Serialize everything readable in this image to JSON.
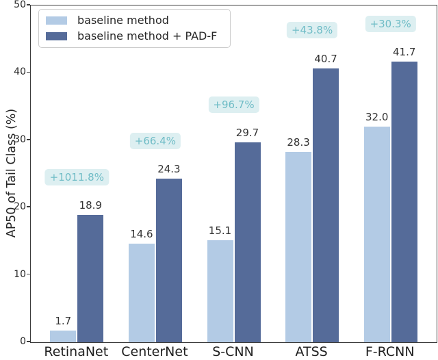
{
  "chart_data": {
    "type": "bar",
    "title": "",
    "xlabel": "",
    "ylabel": "AP50 of Tail Class (%)",
    "ylim": [
      0,
      50
    ],
    "yticks": [
      0,
      10,
      20,
      30,
      40,
      50
    ],
    "grid": false,
    "legend_position": "upper left",
    "categories": [
      "RetinaNet",
      "CenterNet",
      "S-CNN",
      "ATSS",
      "F-RCNN"
    ],
    "series": [
      {
        "name": "baseline method",
        "color": "#b3cbe5",
        "values": [
          1.7,
          14.6,
          15.1,
          28.3,
          32.0
        ],
        "value_labels": [
          "1.7",
          "14.6",
          "15.1",
          "28.3",
          "32.0"
        ]
      },
      {
        "name": "baseline method + PAD-F",
        "color": "#556b99",
        "values": [
          18.9,
          24.3,
          29.7,
          40.7,
          41.7
        ],
        "value_labels": [
          "18.9",
          "24.3",
          "29.7",
          "40.7",
          "41.7"
        ]
      }
    ],
    "annotations": [
      {
        "category": "RetinaNet",
        "label": "+1011.8%"
      },
      {
        "category": "CenterNet",
        "label": "+66.4%"
      },
      {
        "category": "S-CNN",
        "label": "+96.7%"
      },
      {
        "category": "ATSS",
        "label": "+43.8%"
      },
      {
        "category": "F-RCNN",
        "label": "+30.3%"
      }
    ],
    "annotation_text_color": "#6fbcc6",
    "annotation_bg_color": "#ddeff1",
    "axis_color": "#3a3a3a",
    "label_text_color": "#333333"
  }
}
